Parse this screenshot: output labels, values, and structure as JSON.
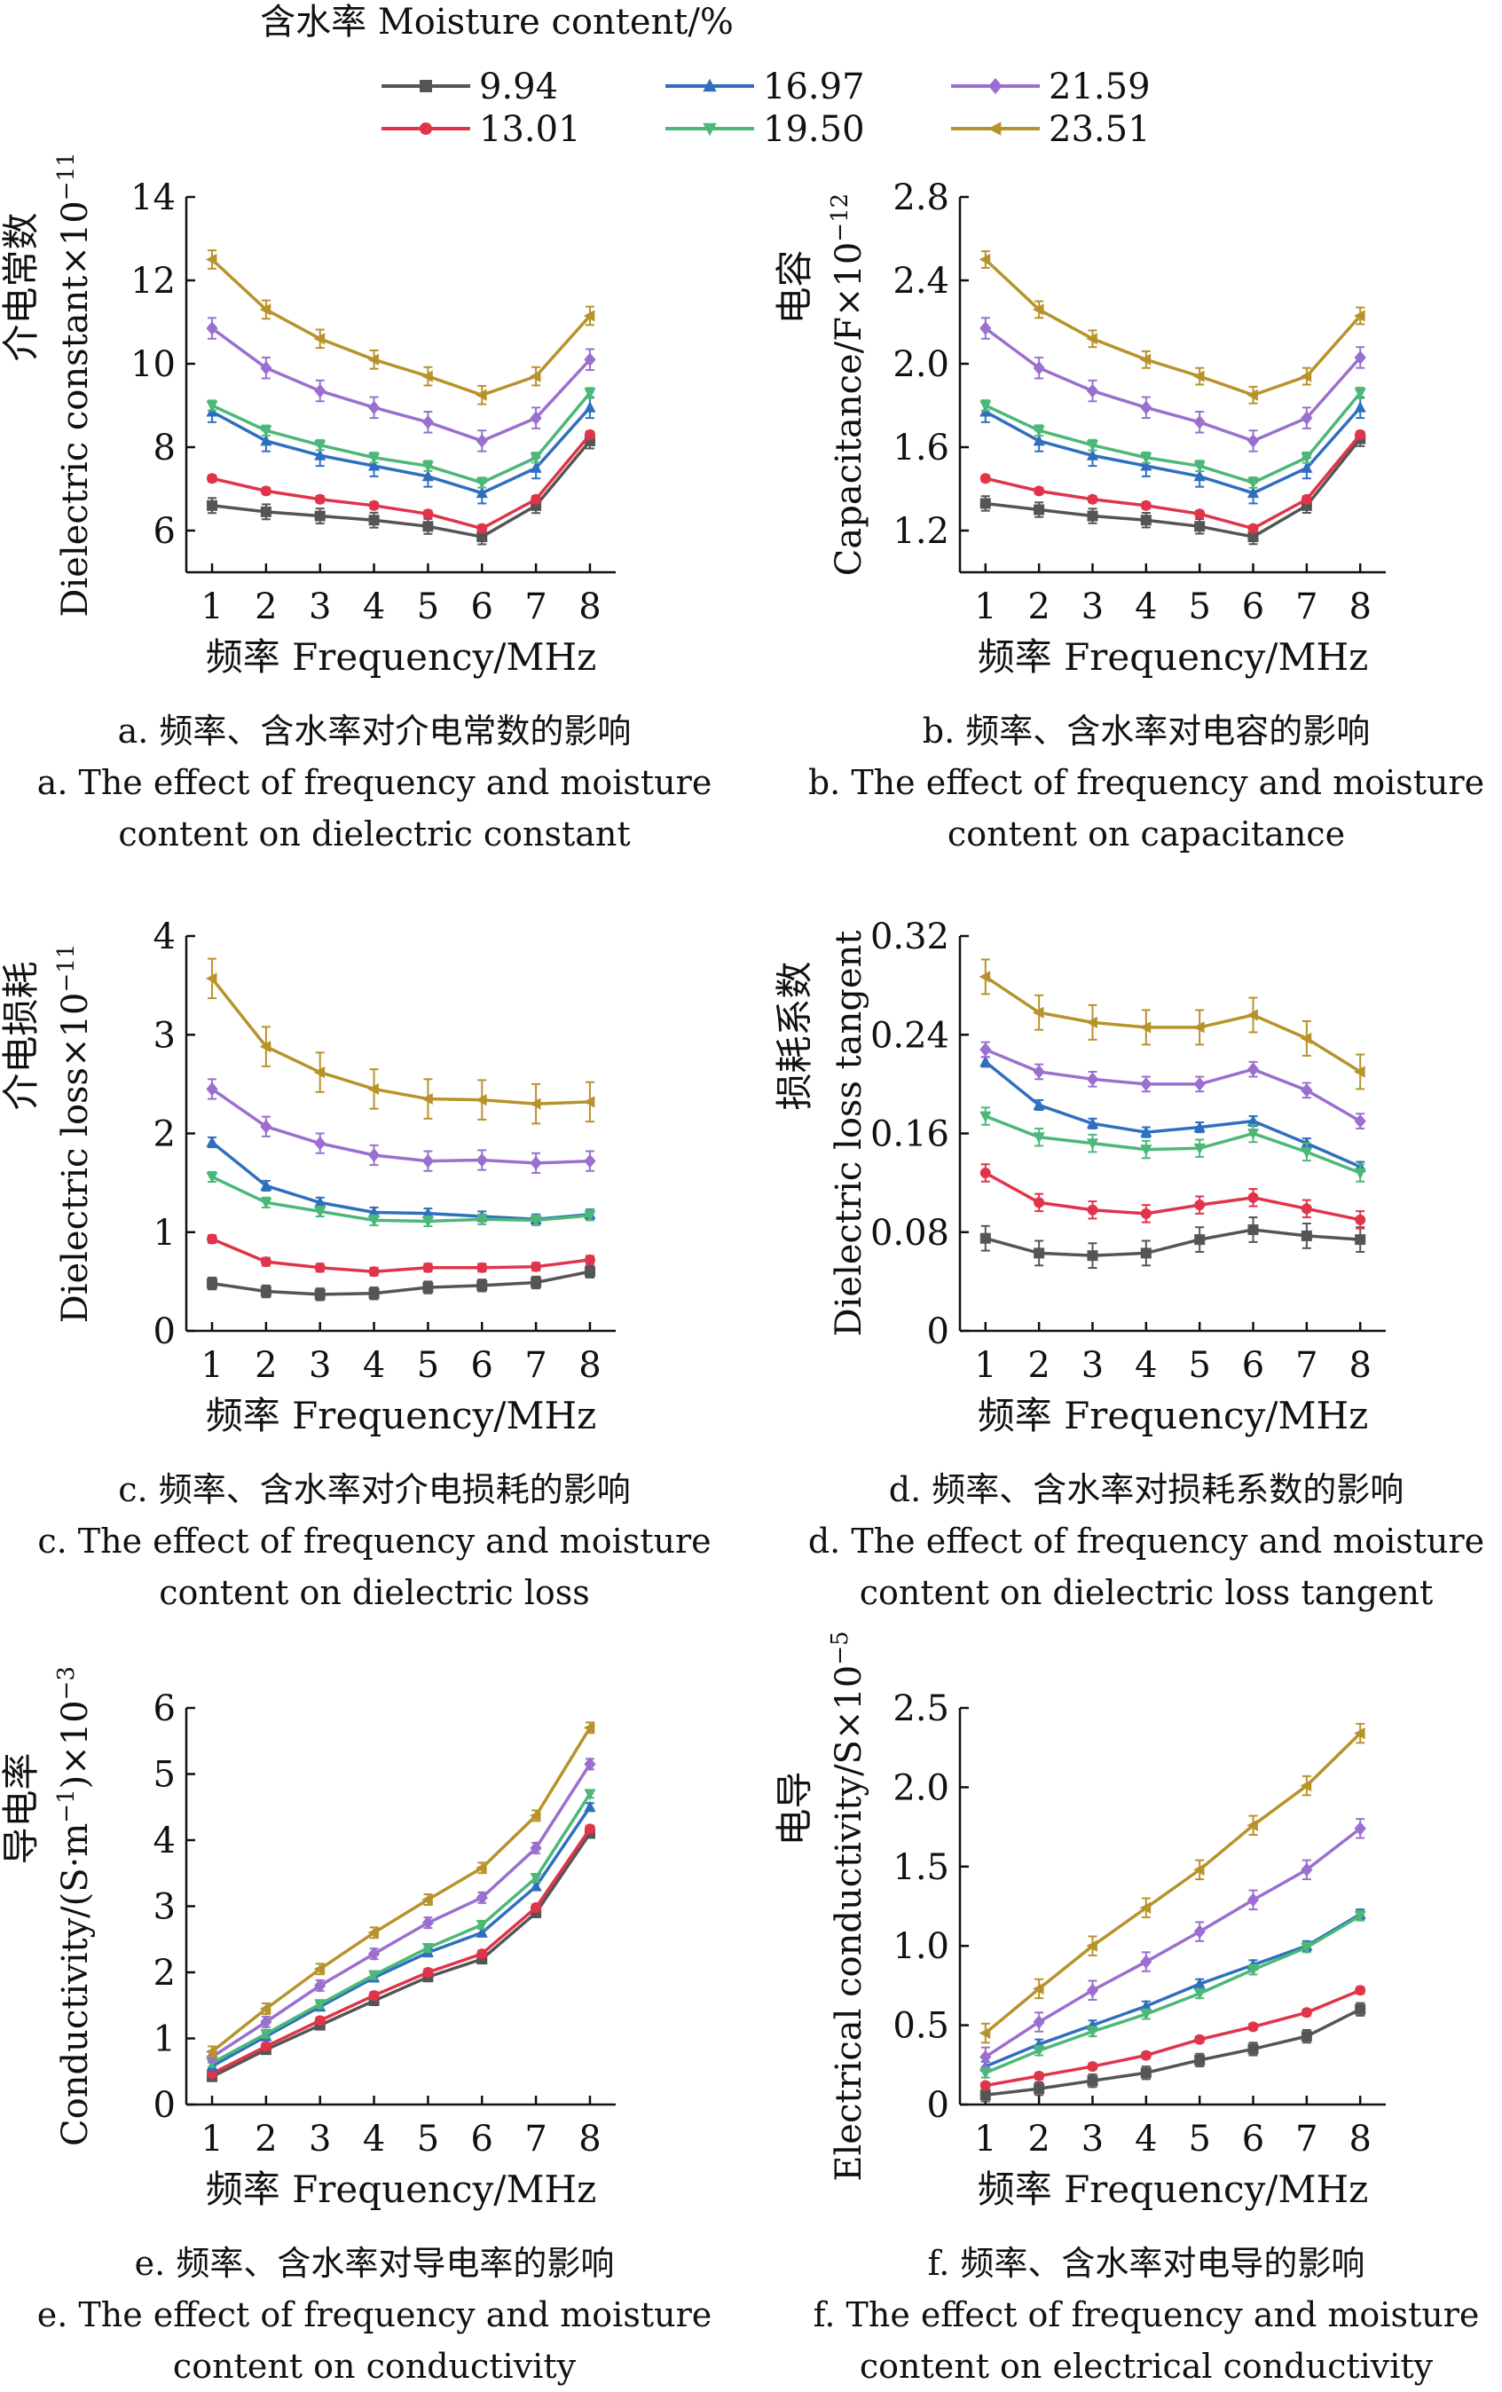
{
  "legend": {
    "title": "含水率 Moisture content/%",
    "position": "top",
    "entries": [
      {
        "label": "9.94",
        "color": "#555555",
        "marker": "square"
      },
      {
        "label": "13.01",
        "color": "#e0344a",
        "marker": "circle"
      },
      {
        "label": "16.97",
        "color": "#2f6fbf",
        "marker": "triangle-up"
      },
      {
        "label": "19.50",
        "color": "#4cb878",
        "marker": "triangle-down"
      },
      {
        "label": "21.59",
        "color": "#9b6fcf",
        "marker": "diamond"
      },
      {
        "label": "23.51",
        "color": "#b8922a",
        "marker": "triangle-left"
      }
    ]
  },
  "chart_data": [
    {
      "id": "a",
      "type": "line",
      "xlabel": "频率  Frequency/MHz",
      "ylabel_cn": "介电常数",
      "ylabel_en": "Dielectric constant×10",
      "ylabel_exp": "−11",
      "x": [
        1,
        2,
        3,
        4,
        5,
        6,
        7,
        8
      ],
      "xticks": [
        "1",
        "2",
        "3",
        "4",
        "5",
        "6",
        "7",
        "8"
      ],
      "ylim": [
        5,
        14
      ],
      "yticks": [
        6,
        8,
        10,
        12,
        14
      ],
      "ytick_labels": [
        "6",
        "8",
        "10",
        "12",
        "14"
      ],
      "series": [
        {
          "name": "9.94",
          "values": [
            6.6,
            6.45,
            6.35,
            6.25,
            6.1,
            5.85,
            6.6,
            8.15
          ],
          "err": 0.18
        },
        {
          "name": "13.01",
          "values": [
            7.25,
            6.95,
            6.75,
            6.6,
            6.4,
            6.05,
            6.75,
            8.3
          ],
          "err": 0.08
        },
        {
          "name": "16.97",
          "values": [
            8.85,
            8.15,
            7.8,
            7.55,
            7.3,
            6.9,
            7.5,
            8.95
          ],
          "err": 0.25
        },
        {
          "name": "19.50",
          "values": [
            9.0,
            8.4,
            8.05,
            7.75,
            7.55,
            7.15,
            7.75,
            9.3
          ],
          "err": 0.12
        },
        {
          "name": "21.59",
          "values": [
            10.85,
            9.9,
            9.35,
            8.95,
            8.6,
            8.15,
            8.7,
            10.1
          ],
          "err": 0.25
        },
        {
          "name": "23.51",
          "values": [
            12.5,
            11.3,
            10.6,
            10.1,
            9.7,
            9.25,
            9.7,
            11.15
          ],
          "err": 0.22
        }
      ],
      "caption_cn": "a. 频率、含水率对介电常数的影响",
      "caption_en1": "a. The effect of frequency and moisture",
      "caption_en2": "content on dielectric constant"
    },
    {
      "id": "b",
      "type": "line",
      "xlabel": "频率  Frequency/MHz",
      "ylabel_cn": "电容",
      "ylabel_en": "Capacitance/F×10",
      "ylabel_exp": "−12",
      "x": [
        1,
        2,
        3,
        4,
        5,
        6,
        7,
        8
      ],
      "xticks": [
        "1",
        "2",
        "3",
        "4",
        "5",
        "6",
        "7",
        "8"
      ],
      "ylim": [
        1.0,
        2.8
      ],
      "yticks": [
        1.2,
        1.6,
        2.0,
        2.4,
        2.8
      ],
      "ytick_labels": [
        "1.2",
        "1.6",
        "2.0",
        "2.4",
        "2.8"
      ],
      "series": [
        {
          "name": "9.94",
          "values": [
            1.33,
            1.3,
            1.27,
            1.25,
            1.22,
            1.17,
            1.32,
            1.64
          ],
          "err": 0.035
        },
        {
          "name": "13.01",
          "values": [
            1.45,
            1.39,
            1.35,
            1.32,
            1.28,
            1.21,
            1.35,
            1.66
          ],
          "err": 0.015
        },
        {
          "name": "16.97",
          "values": [
            1.77,
            1.63,
            1.56,
            1.51,
            1.46,
            1.38,
            1.5,
            1.79
          ],
          "err": 0.05
        },
        {
          "name": "19.50",
          "values": [
            1.8,
            1.68,
            1.61,
            1.55,
            1.51,
            1.43,
            1.55,
            1.86
          ],
          "err": 0.025
        },
        {
          "name": "21.59",
          "values": [
            2.17,
            1.98,
            1.87,
            1.79,
            1.72,
            1.63,
            1.74,
            2.03
          ],
          "err": 0.05
        },
        {
          "name": "23.51",
          "values": [
            2.5,
            2.26,
            2.12,
            2.02,
            1.94,
            1.85,
            1.94,
            2.23
          ],
          "err": 0.04
        }
      ],
      "caption_cn": "b. 频率、含水率对电容的影响",
      "caption_en1": "b. The effect of frequency and moisture",
      "caption_en2": "content on capacitance"
    },
    {
      "id": "c",
      "type": "line",
      "xlabel": "频率  Frequency/MHz",
      "ylabel_cn": "介电损耗",
      "ylabel_en": "Dielectric loss×10",
      "ylabel_exp": "−11",
      "x": [
        1,
        2,
        3,
        4,
        5,
        6,
        7,
        8
      ],
      "xticks": [
        "1",
        "2",
        "3",
        "4",
        "5",
        "6",
        "7",
        "8"
      ],
      "ylim": [
        0,
        4
      ],
      "yticks": [
        0,
        1,
        2,
        3,
        4
      ],
      "ytick_labels": [
        "0",
        "1",
        "2",
        "3",
        "4"
      ],
      "series": [
        {
          "name": "9.94",
          "values": [
            0.48,
            0.4,
            0.37,
            0.38,
            0.44,
            0.46,
            0.49,
            0.6
          ],
          "err": 0.06
        },
        {
          "name": "13.01",
          "values": [
            0.93,
            0.7,
            0.64,
            0.6,
            0.64,
            0.64,
            0.65,
            0.72
          ],
          "err": 0.04
        },
        {
          "name": "16.97",
          "values": [
            1.91,
            1.47,
            1.3,
            1.2,
            1.19,
            1.16,
            1.13,
            1.18
          ],
          "err": 0.05
        },
        {
          "name": "19.50",
          "values": [
            1.56,
            1.3,
            1.21,
            1.12,
            1.11,
            1.13,
            1.12,
            1.17
          ],
          "err": 0.05
        },
        {
          "name": "21.59",
          "values": [
            2.45,
            2.07,
            1.9,
            1.78,
            1.72,
            1.73,
            1.7,
            1.72
          ],
          "err": 0.1
        },
        {
          "name": "23.51",
          "values": [
            3.57,
            2.88,
            2.62,
            2.45,
            2.35,
            2.34,
            2.3,
            2.32
          ],
          "err": 0.2
        }
      ],
      "caption_cn": "c. 频率、含水率对介电损耗的影响",
      "caption_en1": "c. The effect of frequency and moisture",
      "caption_en2": "content on dielectric loss"
    },
    {
      "id": "d",
      "type": "line",
      "xlabel": "频率  Frequency/MHz",
      "ylabel_cn": "损耗系数",
      "ylabel_en": "Dielectric loss tangent",
      "ylabel_exp": "",
      "x": [
        1,
        2,
        3,
        4,
        5,
        6,
        7,
        8
      ],
      "xticks": [
        "1",
        "2",
        "3",
        "4",
        "5",
        "6",
        "7",
        "8"
      ],
      "ylim": [
        0,
        0.32
      ],
      "yticks": [
        0,
        0.08,
        0.16,
        0.24,
        0.32
      ],
      "ytick_labels": [
        "0",
        "0.08",
        "0.16",
        "0.24",
        "0.32"
      ],
      "series": [
        {
          "name": "9.94",
          "values": [
            0.075,
            0.063,
            0.061,
            0.063,
            0.074,
            0.082,
            0.077,
            0.074
          ],
          "err": 0.01
        },
        {
          "name": "13.01",
          "values": [
            0.128,
            0.104,
            0.098,
            0.095,
            0.102,
            0.108,
            0.099,
            0.09
          ],
          "err": 0.007
        },
        {
          "name": "16.97",
          "values": [
            0.218,
            0.183,
            0.168,
            0.161,
            0.165,
            0.17,
            0.152,
            0.133
          ],
          "err": 0.004
        },
        {
          "name": "19.50",
          "values": [
            0.174,
            0.157,
            0.152,
            0.147,
            0.148,
            0.16,
            0.145,
            0.128
          ],
          "err": 0.007
        },
        {
          "name": "21.59",
          "values": [
            0.228,
            0.21,
            0.204,
            0.2,
            0.2,
            0.212,
            0.195,
            0.17
          ],
          "err": 0.006
        },
        {
          "name": "23.51",
          "values": [
            0.287,
            0.258,
            0.25,
            0.246,
            0.246,
            0.256,
            0.237,
            0.21
          ],
          "err": 0.014
        }
      ],
      "caption_cn": "d. 频率、含水率对损耗系数的影响",
      "caption_en1": "d. The effect of frequency and moisture",
      "caption_en2": "content on dielectric loss tangent"
    },
    {
      "id": "e",
      "type": "line",
      "xlabel": "频率  Frequency/MHz",
      "ylabel_cn": "导电率",
      "ylabel_en": "Conductivity/(S·m",
      "ylabel_en_sup": "−1",
      "ylabel_en_tail": ")×10",
      "ylabel_exp": "−3",
      "x": [
        1,
        2,
        3,
        4,
        5,
        6,
        7,
        8
      ],
      "xticks": [
        "1",
        "2",
        "3",
        "4",
        "5",
        "6",
        "7",
        "8"
      ],
      "ylim": [
        0,
        6
      ],
      "yticks": [
        0,
        1,
        2,
        3,
        4,
        5,
        6
      ],
      "ytick_labels": [
        "0",
        "1",
        "2",
        "3",
        "4",
        "5",
        "6"
      ],
      "series": [
        {
          "name": "9.94",
          "values": [
            0.42,
            0.83,
            1.2,
            1.57,
            1.93,
            2.2,
            2.9,
            4.1
          ],
          "err": 0.05
        },
        {
          "name": "13.01",
          "values": [
            0.47,
            0.88,
            1.27,
            1.65,
            2.0,
            2.28,
            2.98,
            4.17
          ],
          "err": 0.05
        },
        {
          "name": "16.97",
          "values": [
            0.58,
            1.03,
            1.48,
            1.92,
            2.3,
            2.6,
            3.3,
            4.5
          ],
          "err": 0.06
        },
        {
          "name": "19.50",
          "values": [
            0.63,
            1.07,
            1.52,
            1.96,
            2.37,
            2.72,
            3.43,
            4.7
          ],
          "err": 0.06
        },
        {
          "name": "21.59",
          "values": [
            0.72,
            1.25,
            1.8,
            2.28,
            2.75,
            3.13,
            3.88,
            5.15
          ],
          "err": 0.08
        },
        {
          "name": "23.51",
          "values": [
            0.8,
            1.45,
            2.05,
            2.6,
            3.1,
            3.58,
            4.37,
            5.7
          ],
          "err": 0.08
        }
      ],
      "caption_cn": "e. 频率、含水率对导电率的影响",
      "caption_en1": "e. The effect of frequency and moisture",
      "caption_en2": "content on conductivity"
    },
    {
      "id": "f",
      "type": "line",
      "xlabel": "频率  Frequency/MHz",
      "ylabel_cn": "电导",
      "ylabel_en": "Electrical conductivity/S×10",
      "ylabel_exp": "−5",
      "x": [
        1,
        2,
        3,
        4,
        5,
        6,
        7,
        8
      ],
      "xticks": [
        "1",
        "2",
        "3",
        "4",
        "5",
        "6",
        "7",
        "8"
      ],
      "ylim": [
        0,
        2.5
      ],
      "yticks": [
        0,
        0.5,
        1.0,
        1.5,
        2.0,
        2.5
      ],
      "ytick_labels": [
        "0",
        "0.5",
        "1.0",
        "1.5",
        "2.0",
        "2.5"
      ],
      "series": [
        {
          "name": "9.94",
          "values": [
            0.06,
            0.1,
            0.15,
            0.2,
            0.28,
            0.35,
            0.43,
            0.6
          ],
          "err": 0.04
        },
        {
          "name": "13.01",
          "values": [
            0.12,
            0.18,
            0.24,
            0.31,
            0.41,
            0.49,
            0.58,
            0.72
          ],
          "err": 0.02
        },
        {
          "name": "16.97",
          "values": [
            0.24,
            0.38,
            0.5,
            0.62,
            0.76,
            0.88,
            1.0,
            1.2
          ],
          "err": 0.03
        },
        {
          "name": "19.50",
          "values": [
            0.2,
            0.34,
            0.46,
            0.57,
            0.7,
            0.85,
            0.99,
            1.19
          ],
          "err": 0.03
        },
        {
          "name": "21.59",
          "values": [
            0.3,
            0.52,
            0.72,
            0.9,
            1.09,
            1.29,
            1.48,
            1.74
          ],
          "err": 0.06
        },
        {
          "name": "23.51",
          "values": [
            0.45,
            0.73,
            1.0,
            1.24,
            1.48,
            1.76,
            2.01,
            2.34
          ],
          "err": 0.06
        }
      ],
      "caption_cn": "f. 频率、含水率对电导的影响",
      "caption_en1": "f. The effect of frequency and moisture",
      "caption_en2": "content on electrical conductivity"
    }
  ]
}
